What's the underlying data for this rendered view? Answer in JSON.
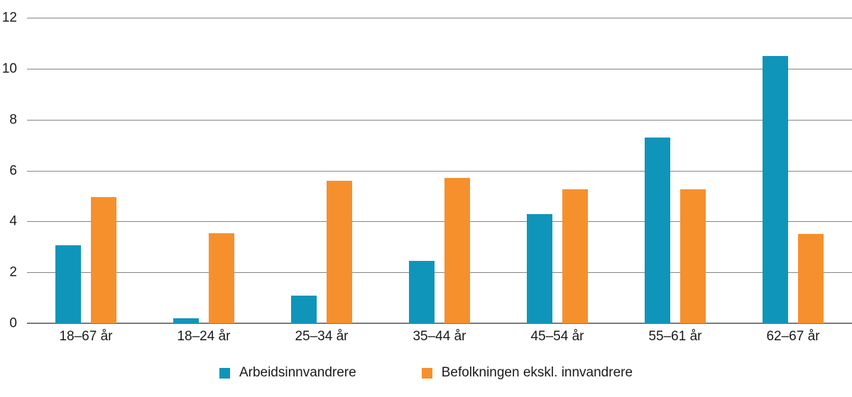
{
  "figure": {
    "background": "#ffffff",
    "text_color": "#1a1a1a",
    "gridline_color": "#858585",
    "axis_line_color": "#7a7a7a"
  },
  "legend": {
    "items": [
      {
        "label": "Arbeidsinnvandrere",
        "color": "#1095BA"
      },
      {
        "label": "Befolkningen ekskl. innvandrere",
        "color": "#F6902D"
      }
    ]
  },
  "chart_data": {
    "type": "bar",
    "title": "",
    "xlabel": "",
    "ylabel": "",
    "categories": [
      "18–67 år",
      "18–24 år",
      "25–34 år",
      "35–44 år",
      "45–54 år",
      "55–61 år",
      "62–67 år"
    ],
    "series": [
      {
        "name": "Arbeidsinnvandrere",
        "color": "#1095BA",
        "values": [
          3.05,
          0.2,
          1.1,
          2.45,
          4.3,
          7.3,
          10.5
        ]
      },
      {
        "name": "Befolkningen ekskl. innvandrere",
        "color": "#F6902D",
        "values": [
          4.95,
          3.55,
          5.6,
          5.7,
          5.25,
          5.25,
          3.5
        ]
      }
    ],
    "ylim": [
      0,
      12
    ],
    "yticks": [
      0,
      2,
      4,
      6,
      8,
      10,
      12
    ],
    "grid": true,
    "legend_position": "bottom"
  }
}
